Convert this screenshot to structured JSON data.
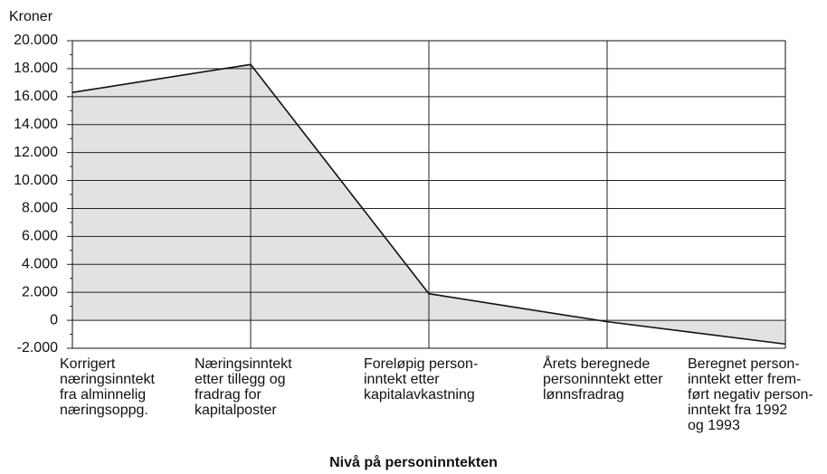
{
  "chart_data": {
    "type": "area",
    "y_label": "Kroner",
    "x_label": "Nivå på personinntekten",
    "categories": [
      "Korrigert\nnæringsinntekt\nfra alminnelig\nnæringsoppg.",
      "Næringsinntekt\netter tillegg og\nfradrag for\nkapitalposter",
      "Foreløpig person-\ninntekt etter\nkapitalavkastning",
      "Årets beregnede\npersoninntekt etter\nlønnsfradrag",
      "Beregnet person-\ninntekt etter frem-\nført negativ person-\ninntekt fra 1992\nog 1993"
    ],
    "values": [
      16300,
      18300,
      1900,
      -100,
      -1700
    ],
    "color": "#e2e2e2",
    "line_color": "#111111",
    "ylim": [
      -2000,
      20000
    ],
    "yticks": [
      {
        "value": -2000,
        "label": "-2.000"
      },
      0,
      {
        "value": 2000,
        "label": "2.000"
      },
      {
        "value": 4000,
        "label": "4.000"
      },
      {
        "value": 6000,
        "label": "6.000"
      },
      {
        "value": 8000,
        "label": "8.000"
      },
      {
        "value": 10000,
        "label": "10.000"
      },
      {
        "value": 12000,
        "label": "12.000"
      },
      {
        "value": 14000,
        "label": "14.000"
      },
      {
        "value": 16000,
        "label": "16.000"
      },
      {
        "value": 18000,
        "label": "18.000"
      },
      {
        "value": 20000,
        "label": "20.000"
      }
    ],
    "grid": true
  }
}
